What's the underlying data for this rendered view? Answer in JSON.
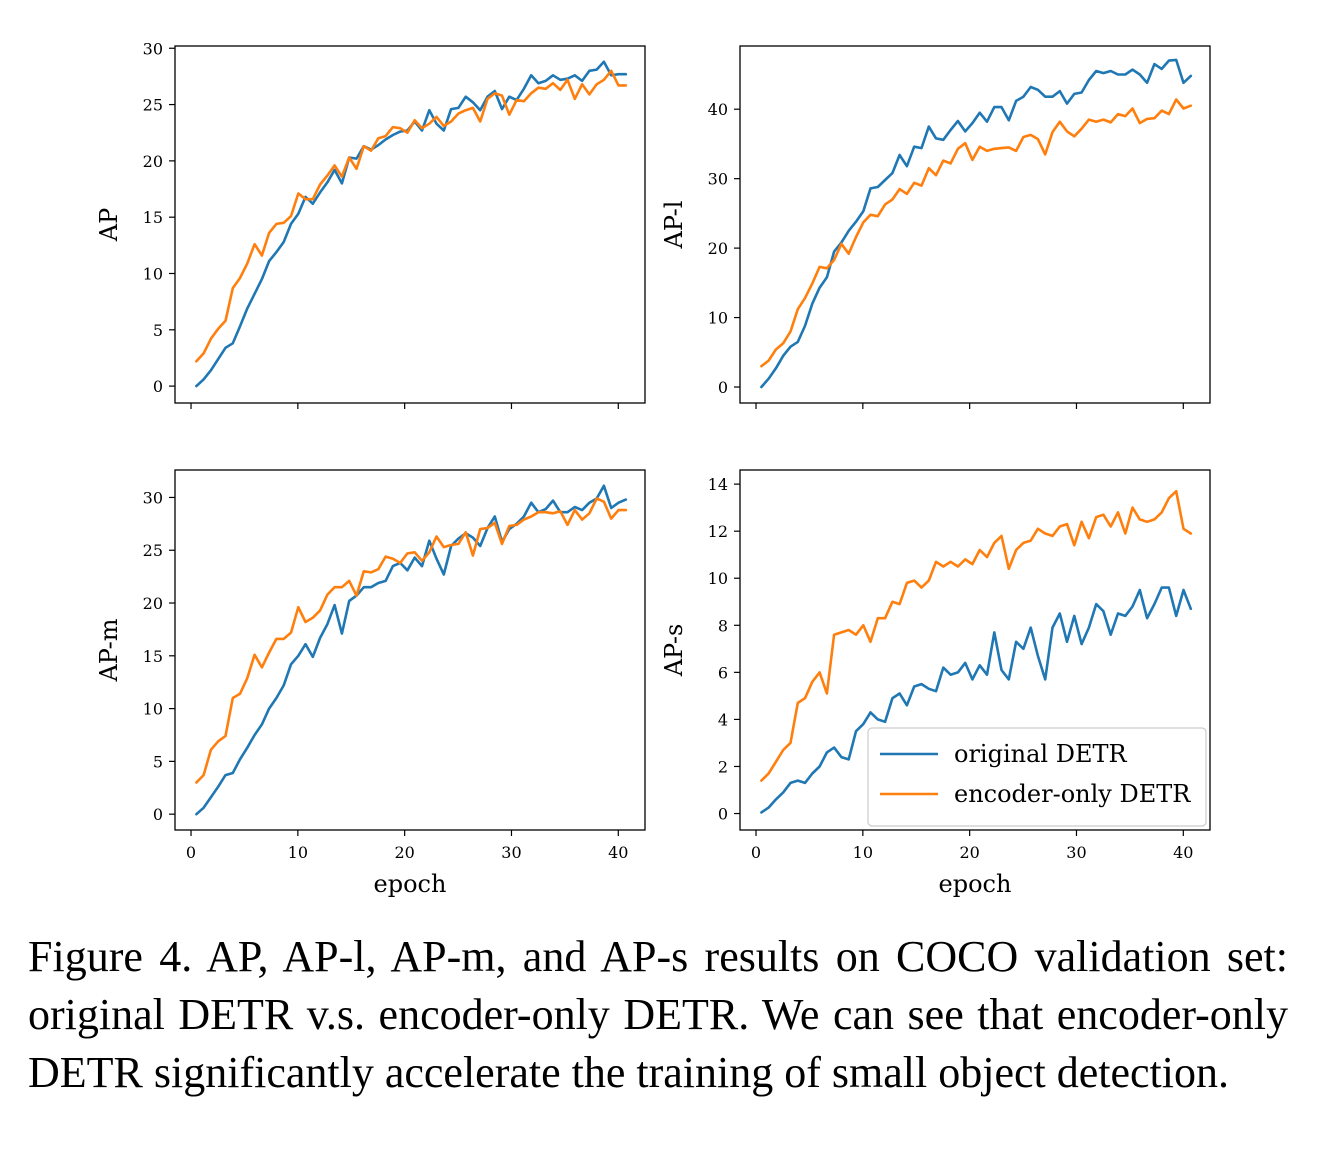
{
  "colors": {
    "original": "#1f77b4",
    "encoder_only": "#ff7f0e"
  },
  "caption": "Figure 4. AP, AP-l, AP-m, and AP-s results on COCO validation set:  original DETR v.s.  encoder-only DETR. We can see that encoder-only DETR significantly accelerate the training of small object detection.",
  "chart_data": [
    {
      "type": "line",
      "ylabel": "AP",
      "xlabel": "",
      "xlim": [
        -1.5,
        42.5
      ],
      "ylim": [
        -1.5,
        30.2
      ],
      "xticks": [
        0,
        10,
        20,
        30,
        40
      ],
      "show_xtick_labels": false,
      "yticks": [
        0,
        5,
        10,
        15,
        20,
        25,
        30
      ],
      "series": [
        {
          "name": "original DETR",
          "color": "#1f77b4",
          "values": [
            0,
            0.6,
            1.4,
            2.4,
            3.4,
            3.8,
            5.3,
            6.9,
            8.2,
            9.5,
            11.1,
            11.9,
            12.8,
            14.4,
            15.3,
            16.8,
            16.2,
            17.2,
            18.1,
            19.2,
            18.0,
            20.3,
            20.2,
            21.3,
            21.0,
            21.4,
            21.9,
            22.3,
            22.6,
            22.7,
            23.5,
            22.7,
            24.5,
            23.3,
            22.7,
            24.6,
            24.7,
            25.7,
            25.2,
            24.5,
            25.7,
            26.2,
            24.6,
            25.7,
            25.4,
            26.4,
            27.6,
            26.9,
            27.1,
            27.6,
            27.2,
            27.3,
            27.6,
            27.1,
            28.0,
            28.1,
            28.8,
            27.6,
            27.7,
            27.7
          ]
        },
        {
          "name": "encoder-only DETR",
          "color": "#ff7f0e",
          "values": [
            2.2,
            2.9,
            4.2,
            5.1,
            5.8,
            8.7,
            9.6,
            10.9,
            12.6,
            11.6,
            13.6,
            14.4,
            14.5,
            15.1,
            17.1,
            16.6,
            16.6,
            17.9,
            18.7,
            19.6,
            18.6,
            20.3,
            19.3,
            21.3,
            20.9,
            22.0,
            22.2,
            23.0,
            22.9,
            22.5,
            23.6,
            22.9,
            23.3,
            23.9,
            23.1,
            23.5,
            24.2,
            24.5,
            24.7,
            23.5,
            25.5,
            26.0,
            25.8,
            24.1,
            25.4,
            25.3,
            26.0,
            26.5,
            26.4,
            26.9,
            26.3,
            27.2,
            25.5,
            26.8,
            25.9,
            26.8,
            27.2,
            28.0,
            26.7,
            26.7
          ]
        }
      ]
    },
    {
      "type": "line",
      "ylabel": "AP-l",
      "xlabel": "",
      "xlim": [
        -1.5,
        42.5
      ],
      "ylim": [
        -2.3,
        49.1
      ],
      "xticks": [
        0,
        10,
        20,
        30,
        40
      ],
      "show_xtick_labels": false,
      "yticks": [
        0,
        10,
        20,
        30,
        40
      ],
      "series": [
        {
          "name": "original DETR",
          "color": "#1f77b4",
          "values": [
            0,
            1.2,
            2.7,
            4.5,
            5.8,
            6.5,
            8.8,
            12.0,
            14.3,
            15.8,
            19.5,
            20.8,
            22.5,
            23.8,
            25.3,
            28.6,
            28.8,
            29.8,
            30.8,
            33.4,
            31.8,
            34.6,
            34.4,
            37.5,
            35.8,
            35.6,
            37.0,
            38.3,
            36.8,
            38.0,
            39.5,
            38.2,
            40.3,
            40.3,
            38.4,
            41.2,
            41.8,
            43.2,
            42.8,
            41.8,
            41.8,
            42.6,
            40.8,
            42.2,
            42.4,
            44.2,
            45.5,
            45.2,
            45.5,
            45.0,
            45.0,
            45.7,
            45.0,
            43.8,
            46.5,
            45.8,
            47.0,
            47.1,
            43.8,
            44.8
          ]
        },
        {
          "name": "encoder-only DETR",
          "color": "#ff7f0e",
          "values": [
            3.0,
            3.8,
            5.4,
            6.3,
            8.0,
            11.2,
            12.8,
            14.9,
            17.3,
            17.1,
            18.3,
            20.6,
            19.2,
            21.6,
            23.7,
            24.8,
            24.6,
            26.3,
            27.0,
            28.5,
            27.8,
            29.4,
            29.0,
            31.5,
            30.5,
            32.6,
            32.2,
            34.3,
            35.1,
            32.7,
            34.6,
            34.0,
            34.3,
            34.4,
            34.5,
            34.0,
            36.0,
            36.3,
            35.7,
            33.5,
            36.7,
            38.2,
            36.8,
            36.1,
            37.2,
            38.5,
            38.2,
            38.5,
            38.1,
            39.3,
            39.0,
            40.1,
            38.0,
            38.6,
            38.7,
            39.8,
            39.3,
            41.4,
            40.1,
            40.5
          ]
        }
      ]
    },
    {
      "type": "line",
      "ylabel": "AP-m",
      "xlabel": "epoch",
      "xlim": [
        -1.5,
        42.5
      ],
      "ylim": [
        -1.5,
        32.6
      ],
      "xticks": [
        0,
        10,
        20,
        30,
        40
      ],
      "show_xtick_labels": true,
      "yticks": [
        0,
        5,
        10,
        15,
        20,
        25,
        30
      ],
      "series": [
        {
          "name": "original DETR",
          "color": "#1f77b4",
          "values": [
            0,
            0.6,
            1.6,
            2.6,
            3.7,
            3.9,
            5.2,
            6.3,
            7.5,
            8.5,
            10.0,
            11.0,
            12.2,
            14.2,
            15.0,
            16.1,
            14.9,
            16.7,
            18.0,
            19.8,
            17.1,
            20.2,
            20.7,
            21.5,
            21.5,
            21.9,
            22.1,
            23.5,
            23.8,
            23.1,
            24.3,
            23.5,
            25.9,
            24.2,
            22.7,
            25.4,
            26.1,
            26.6,
            26.2,
            25.4,
            27.1,
            28.2,
            25.8,
            27.0,
            27.5,
            28.2,
            29.5,
            28.6,
            28.9,
            29.7,
            28.6,
            28.6,
            29.1,
            28.8,
            29.5,
            29.9,
            31.1,
            29.0,
            29.5,
            29.8
          ]
        },
        {
          "name": "encoder-only DETR",
          "color": "#ff7f0e",
          "values": [
            3.0,
            3.7,
            6.1,
            6.9,
            7.4,
            11.0,
            11.4,
            12.9,
            15.1,
            13.9,
            15.3,
            16.6,
            16.6,
            17.2,
            19.6,
            18.2,
            18.6,
            19.3,
            20.8,
            21.5,
            21.5,
            22.1,
            20.7,
            23.0,
            22.9,
            23.2,
            24.4,
            24.2,
            23.8,
            24.7,
            24.8,
            24.0,
            24.8,
            26.3,
            25.3,
            25.5,
            25.6,
            26.7,
            24.5,
            27.0,
            27.1,
            27.6,
            25.6,
            27.3,
            27.4,
            27.9,
            28.2,
            28.6,
            28.6,
            28.5,
            28.7,
            27.4,
            28.8,
            27.9,
            28.5,
            29.9,
            29.6,
            28.0,
            28.8,
            28.8
          ]
        }
      ]
    },
    {
      "type": "line",
      "ylabel": "AP-s",
      "xlabel": "epoch",
      "xlim": [
        -1.5,
        42.5
      ],
      "ylim": [
        -0.7,
        14.6
      ],
      "xticks": [
        0,
        10,
        20,
        30,
        40
      ],
      "show_xtick_labels": true,
      "yticks": [
        0,
        2,
        4,
        6,
        8,
        10,
        12,
        14
      ],
      "legend": "lower-right",
      "series": [
        {
          "name": "original DETR",
          "color": "#1f77b4",
          "values": [
            0.05,
            0.25,
            0.6,
            0.9,
            1.3,
            1.4,
            1.3,
            1.7,
            2.0,
            2.6,
            2.8,
            2.4,
            2.3,
            3.5,
            3.8,
            4.3,
            4.0,
            3.9,
            4.9,
            5.1,
            4.6,
            5.4,
            5.5,
            5.3,
            5.2,
            6.2,
            5.9,
            6.0,
            6.4,
            5.7,
            6.3,
            5.9,
            7.7,
            6.1,
            5.7,
            7.3,
            7.0,
            7.9,
            6.7,
            5.7,
            7.9,
            8.5,
            7.3,
            8.4,
            7.2,
            7.9,
            8.9,
            8.6,
            7.6,
            8.5,
            8.4,
            8.8,
            9.5,
            8.3,
            8.9,
            9.6,
            9.6,
            8.4,
            9.5,
            8.7
          ]
        },
        {
          "name": "encoder-only DETR",
          "color": "#ff7f0e",
          "values": [
            1.4,
            1.7,
            2.2,
            2.7,
            3.0,
            4.7,
            4.9,
            5.6,
            6.0,
            5.1,
            7.6,
            7.7,
            7.8,
            7.6,
            8.0,
            7.3,
            8.3,
            8.3,
            9.0,
            8.9,
            9.8,
            9.9,
            9.6,
            9.9,
            10.7,
            10.5,
            10.7,
            10.5,
            10.8,
            10.6,
            11.2,
            10.9,
            11.5,
            11.8,
            10.4,
            11.2,
            11.5,
            11.6,
            12.1,
            11.9,
            11.8,
            12.2,
            12.3,
            11.4,
            12.4,
            11.7,
            12.6,
            12.7,
            12.2,
            12.8,
            11.9,
            13.0,
            12.5,
            12.4,
            12.5,
            12.8,
            13.4,
            13.7,
            12.1,
            11.9
          ]
        }
      ]
    }
  ]
}
